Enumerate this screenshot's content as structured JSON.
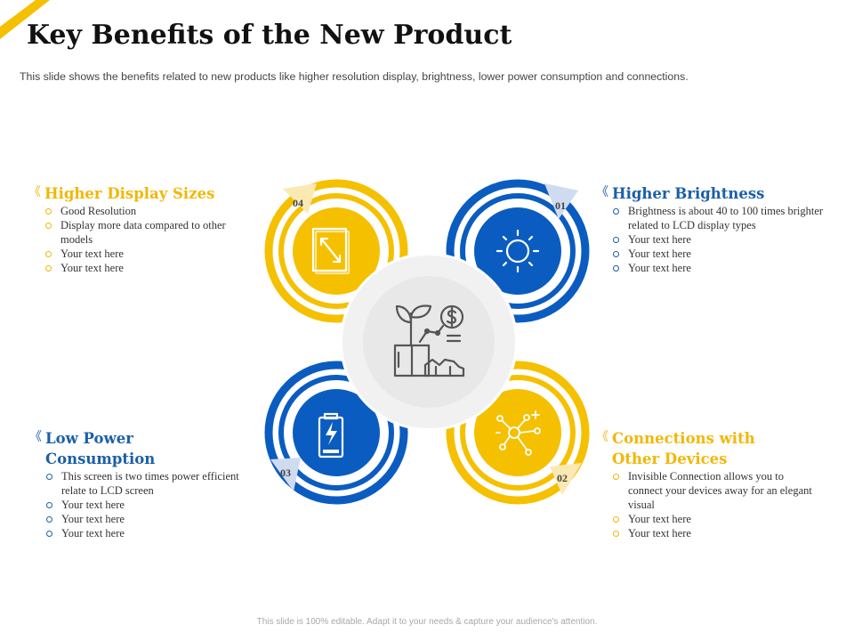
{
  "colors": {
    "yellow": "#f5c000",
    "blue": "#0b5cc0",
    "yellow_light": "#fbe9b4",
    "blue_light": "#cfdcf0",
    "center_grey": "#ececec"
  },
  "title": "Key Benefits of the New Product",
  "subtitle": "This slide shows the benefits related to new products like higher resolution display, brightness, lower power consumption and connections.",
  "footer": "This slide is 100% editable. Adapt it to your needs & capture your audience's attention.",
  "circles": [
    {
      "number": "04",
      "color": "yellow",
      "icon": "resize-screen-icon"
    },
    {
      "number": "01",
      "color": "blue",
      "icon": "sun-icon"
    },
    {
      "number": "03",
      "color": "blue",
      "icon": "battery-charging-icon"
    },
    {
      "number": "02",
      "color": "yellow",
      "icon": "network-connection-icon"
    }
  ],
  "center_icon": "growth-investment-icon",
  "benefits": {
    "display": {
      "title": "Higher Display Sizes",
      "bullets": [
        "Good Resolution",
        "Display more data compared to other models",
        "Your text here",
        "Your text here"
      ]
    },
    "brightness": {
      "title": "Higher Brightness",
      "bullets": [
        "Brightness is about 40 to 100 times brighter related to LCD display types",
        "Your text here",
        "Your text here",
        "Your text here"
      ]
    },
    "power": {
      "title": "Low Power Consumption",
      "bullets": [
        "This screen is two times power efficient relate to LCD screen",
        "Your text here",
        "Your text here",
        "Your text here"
      ]
    },
    "connections": {
      "title": "Connections with\nOther Devices",
      "bullets": [
        "Invisible Connection allows you to connect your devices away for an elegant visual",
        "Your text here",
        "Your text here"
      ]
    }
  },
  "chevron_glyph": "《"
}
